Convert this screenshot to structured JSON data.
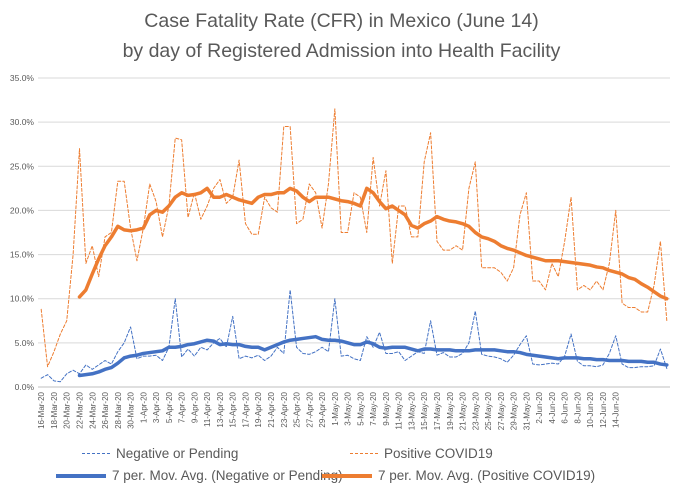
{
  "title_line1": "Case Fatality Rate (CFR) in Mexico (June 14)",
  "title_line2": "by day of Registered Admission into Health Facility",
  "colors": {
    "blue": "#4472C4",
    "orange": "#ED7D31",
    "grid": "#D9D9D9",
    "text": "#595959"
  },
  "chart_data": {
    "type": "line",
    "title": "Case Fatality Rate (CFR) in Mexico (June 14) by day of Registered Admission into Health Facility",
    "xlabel": "",
    "ylabel": "",
    "ylim": [
      0,
      35
    ],
    "y_ticks": [
      "0.0%",
      "5.0%",
      "10.0%",
      "15.0%",
      "20.0%",
      "25.0%",
      "30.0%",
      "35.0%"
    ],
    "grid": true,
    "legend_position": "bottom",
    "x_start": "2020-03-16",
    "x_tick_labels": [
      "16-Mar-20",
      "18-Mar-20",
      "20-Mar-20",
      "22-Mar-20",
      "24-Mar-20",
      "26-Mar-20",
      "28-Mar-20",
      "30-Mar-20",
      "1-Apr-20",
      "3-Apr-20",
      "5-Apr-20",
      "7-Apr-20",
      "9-Apr-20",
      "11-Apr-20",
      "13-Apr-20",
      "15-Apr-20",
      "17-Apr-20",
      "19-Apr-20",
      "21-Apr-20",
      "23-Apr-20",
      "25-Apr-20",
      "27-Apr-20",
      "29-Apr-20",
      "1-May-20",
      "3-May-20",
      "5-May-20",
      "7-May-20",
      "9-May-20",
      "11-May-20",
      "13-May-20",
      "15-May-20",
      "17-May-20",
      "19-May-20",
      "21-May-20",
      "23-May-20",
      "25-May-20",
      "27-May-20",
      "29-May-20",
      "31-May-20",
      "2-Jun-20",
      "4-Jun-20",
      "6-Jun-20",
      "8-Jun-20",
      "10-Jun-20",
      "12-Jun-20",
      "14-Jun-20"
    ],
    "series": [
      {
        "name": "Negative or Pending",
        "style": "dashed",
        "color": "#4472C4",
        "values": [
          1.0,
          1.4,
          0.7,
          0.6,
          1.5,
          1.9,
          1.5,
          2.5,
          2.0,
          2.5,
          3.0,
          2.6,
          4.0,
          5.0,
          6.8,
          3.2,
          3.5,
          3.5,
          3.6,
          3.0,
          4.5,
          10.0,
          3.4,
          4.3,
          3.5,
          4.5,
          4.2,
          5.0,
          5.5,
          4.5,
          8.0,
          3.2,
          3.5,
          3.3,
          3.6,
          3.0,
          3.5,
          4.5,
          3.8,
          11.0,
          4.5,
          3.8,
          3.7,
          4.0,
          4.5,
          4.0,
          10.0,
          3.5,
          3.6,
          3.2,
          3.0,
          5.7,
          4.5,
          6.2,
          3.8,
          3.8,
          4.0,
          3.0,
          3.5,
          4.0,
          3.8,
          7.5,
          3.6,
          3.9,
          3.4,
          3.4,
          3.8,
          5.0,
          8.6,
          3.7,
          3.5,
          3.4,
          3.2,
          2.8,
          3.6,
          4.8,
          5.8,
          2.6,
          2.5,
          2.6,
          2.7,
          2.6,
          3.5,
          6.0,
          2.9,
          2.4,
          2.4,
          2.3,
          2.5,
          3.8,
          5.8,
          2.6,
          2.2,
          2.2,
          2.3,
          2.3,
          2.4,
          4.3,
          2.1
        ]
      },
      {
        "name": "Positive COVID19",
        "style": "dashed",
        "color": "#ED7D31",
        "values": [
          8.8,
          2.3,
          4.0,
          6.0,
          7.5,
          15.0,
          27.0,
          14.0,
          16.0,
          12.5,
          17.0,
          17.5,
          23.3,
          23.3,
          18.0,
          14.3,
          18.0,
          23.0,
          21.0,
          17.0,
          20.5,
          28.2,
          28.0,
          19.2,
          22.0,
          19.0,
          20.5,
          22.5,
          23.5,
          20.8,
          21.5,
          25.7,
          18.5,
          17.3,
          17.3,
          21.5,
          20.3,
          19.8,
          29.5,
          29.5,
          18.5,
          19.0,
          23.0,
          22.0,
          18.0,
          23.0,
          31.5,
          17.5,
          17.5,
          22.0,
          21.5,
          17.5,
          26.0,
          20.5,
          24.5,
          14.0,
          20.5,
          20.5,
          17.0,
          17.0,
          25.5,
          28.8,
          16.5,
          15.5,
          15.5,
          16.0,
          15.5,
          22.5,
          25.5,
          13.5,
          13.5,
          13.5,
          13.0,
          12.0,
          13.5,
          19.5,
          22.0,
          12.0,
          12.0,
          11.0,
          14.0,
          12.5,
          16.5,
          21.5,
          11.0,
          11.5,
          11.0,
          12.0,
          11.0,
          14.0,
          20.0,
          9.5,
          9.0,
          9.0,
          8.5,
          8.5,
          11.5,
          16.5,
          7.5
        ]
      },
      {
        "name": "7 per. Mov. Avg. (Negative or Pending)",
        "style": "solid",
        "color": "#4472C4",
        "values": [
          null,
          null,
          null,
          null,
          null,
          null,
          1.3,
          1.4,
          1.5,
          1.7,
          2.0,
          2.2,
          2.7,
          3.3,
          3.5,
          3.6,
          3.8,
          3.9,
          4.0,
          4.1,
          4.5,
          4.5,
          4.6,
          4.8,
          4.9,
          5.1,
          5.3,
          5.2,
          4.8,
          4.9,
          4.8,
          4.8,
          4.6,
          4.5,
          4.5,
          4.2,
          4.5,
          4.8,
          5.1,
          5.3,
          5.4,
          5.5,
          5.6,
          5.7,
          5.4,
          5.3,
          5.3,
          5.2,
          5.0,
          4.8,
          4.8,
          5.1,
          4.9,
          4.5,
          4.4,
          4.5,
          4.5,
          4.5,
          4.3,
          4.1,
          4.3,
          4.3,
          4.2,
          4.2,
          4.2,
          4.1,
          4.1,
          4.1,
          4.2,
          4.2,
          4.2,
          4.2,
          4.1,
          4.0,
          4.0,
          3.9,
          3.7,
          3.6,
          3.5,
          3.4,
          3.3,
          3.2,
          3.3,
          3.3,
          3.3,
          3.2,
          3.2,
          3.1,
          3.1,
          3.0,
          3.0,
          3.0,
          2.9,
          2.9,
          2.9,
          2.8,
          2.8,
          2.6,
          2.5
        ]
      },
      {
        "name": "7 per. Mov. Avg. (Positive COVID19)",
        "style": "solid",
        "color": "#ED7D31",
        "values": [
          null,
          null,
          null,
          null,
          null,
          null,
          10.2,
          11.0,
          12.8,
          14.5,
          16.0,
          17.0,
          18.2,
          17.8,
          17.7,
          17.8,
          18.0,
          19.5,
          20.0,
          19.8,
          20.5,
          21.5,
          22.0,
          21.7,
          21.8,
          22.0,
          22.5,
          21.5,
          21.5,
          21.8,
          21.5,
          21.2,
          21.0,
          20.8,
          21.5,
          21.8,
          21.8,
          22.0,
          22.0,
          22.5,
          22.2,
          21.5,
          21.0,
          21.5,
          21.5,
          21.5,
          21.3,
          21.1,
          21.0,
          20.8,
          20.5,
          22.5,
          22.0,
          21.0,
          20.2,
          20.5,
          20.0,
          19.5,
          18.3,
          18.0,
          18.5,
          18.8,
          19.3,
          19.0,
          18.8,
          18.7,
          18.5,
          18.2,
          17.5,
          17.0,
          16.8,
          16.5,
          16.0,
          15.7,
          15.5,
          15.2,
          14.9,
          14.7,
          14.5,
          14.3,
          14.3,
          14.3,
          14.2,
          14.1,
          14.0,
          13.9,
          13.8,
          13.6,
          13.5,
          13.2,
          13.0,
          12.8,
          12.4,
          12.2,
          11.7,
          11.3,
          10.8,
          10.3,
          10.0
        ]
      }
    ]
  },
  "legend": {
    "neg": "Negative or Pending",
    "pos": "Positive COVID19",
    "neg_avg": "7 per. Mov. Avg. (Negative or Pending)",
    "pos_avg": "7 per. Mov. Avg. (Positive COVID19)"
  }
}
